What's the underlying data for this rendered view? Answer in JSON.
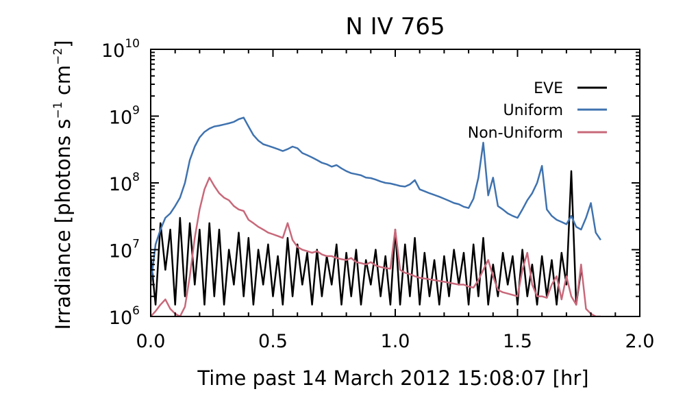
{
  "chart_data": {
    "type": "line",
    "title": "N IV 765",
    "xlabel": "Time past 14 March 2012 15:08:07 [hr]",
    "ylabel": {
      "base": "Irradiance [photons s",
      "exp1": "−1",
      "mid": " cm",
      "exp2": "−2",
      "end": "]"
    },
    "xlim": [
      0.0,
      2.0
    ],
    "ylim": [
      1000000,
      10000000000
    ],
    "yscale": "log",
    "xticks": [
      {
        "value": 0.0,
        "label": "0.0"
      },
      {
        "value": 0.5,
        "label": "0.5"
      },
      {
        "value": 1.0,
        "label": "1.0"
      },
      {
        "value": 1.5,
        "label": "1.5"
      },
      {
        "value": 2.0,
        "label": "2.0"
      }
    ],
    "yticks": [
      {
        "value": 1000000,
        "base": "10",
        "exp": "6"
      },
      {
        "value": 10000000,
        "base": "10",
        "exp": "7"
      },
      {
        "value": 100000000,
        "base": "10",
        "exp": "8"
      },
      {
        "value": 1000000000,
        "base": "10",
        "exp": "9"
      },
      {
        "value": 10000000000,
        "base": "10",
        "exp": "10"
      }
    ],
    "legend_position": "top-right",
    "x": [
      0.0,
      0.02,
      0.04,
      0.06,
      0.08,
      0.1,
      0.12,
      0.14,
      0.16,
      0.18,
      0.2,
      0.22,
      0.24,
      0.26,
      0.28,
      0.3,
      0.32,
      0.34,
      0.36,
      0.38,
      0.4,
      0.42,
      0.44,
      0.46,
      0.48,
      0.5,
      0.52,
      0.54,
      0.56,
      0.58,
      0.6,
      0.62,
      0.64,
      0.66,
      0.68,
      0.7,
      0.72,
      0.74,
      0.76,
      0.78,
      0.8,
      0.82,
      0.84,
      0.86,
      0.88,
      0.9,
      0.92,
      0.94,
      0.96,
      0.98,
      1.0,
      1.02,
      1.04,
      1.06,
      1.08,
      1.1,
      1.12,
      1.14,
      1.16,
      1.18,
      1.2,
      1.22,
      1.24,
      1.26,
      1.28,
      1.3,
      1.32,
      1.34,
      1.36,
      1.38,
      1.4,
      1.42,
      1.44,
      1.46,
      1.48,
      1.5,
      1.52,
      1.54,
      1.56,
      1.58,
      1.6,
      1.62,
      1.64,
      1.66,
      1.68,
      1.7,
      1.72,
      1.74,
      1.76,
      1.78,
      1.8,
      1.82,
      1.84
    ],
    "series": [
      {
        "name": "EVE",
        "color": "#000000",
        "values": [
          8000000,
          1500000,
          25000000,
          5000000,
          20000000,
          1500000,
          30000000,
          2000000,
          25000000,
          3000000,
          20000000,
          1500000,
          25000000,
          2000000,
          20000000,
          1500000,
          10000000,
          3000000,
          18000000,
          2000000,
          15000000,
          1500000,
          10000000,
          3000000,
          12000000,
          2000000,
          8000000,
          1500000,
          15000000,
          2000000,
          12000000,
          3000000,
          9000000,
          1500000,
          10000000,
          2000000,
          8000000,
          3000000,
          12000000,
          1500000,
          9000000,
          2000000,
          10000000,
          1500000,
          7000000,
          3000000,
          10000000,
          2000000,
          8000000,
          1500000,
          20000000,
          1500000,
          12000000,
          2000000,
          15000000,
          1500000,
          9000000,
          2000000,
          7000000,
          1500000,
          8000000,
          2000000,
          10000000,
          3000000,
          9000000,
          1500000,
          12000000,
          2000000,
          15000000,
          1500000,
          6000000,
          2000000,
          9000000,
          3000000,
          8000000,
          1500000,
          10000000,
          2000000,
          6000000,
          1500000,
          8000000,
          2000000,
          7000000,
          1500000,
          9000000,
          3000000,
          150000000,
          1500000,
          5000000,
          null,
          null,
          null,
          null
        ]
      },
      {
        "name": "Uniform",
        "color": "#3f72af",
        "values": [
          3000000,
          12000000,
          20000000,
          30000000,
          35000000,
          45000000,
          60000000,
          100000000,
          220000000,
          350000000,
          480000000,
          580000000,
          650000000,
          700000000,
          720000000,
          750000000,
          780000000,
          820000000,
          900000000,
          950000000,
          700000000,
          520000000,
          430000000,
          380000000,
          360000000,
          340000000,
          320000000,
          300000000,
          320000000,
          350000000,
          330000000,
          280000000,
          260000000,
          240000000,
          220000000,
          200000000,
          190000000,
          175000000,
          185000000,
          165000000,
          150000000,
          140000000,
          135000000,
          130000000,
          120000000,
          118000000,
          112000000,
          105000000,
          100000000,
          98000000,
          94000000,
          90000000,
          88000000,
          95000000,
          110000000,
          80000000,
          75000000,
          70000000,
          66000000,
          62000000,
          58000000,
          54000000,
          50000000,
          48000000,
          44000000,
          42000000,
          58000000,
          120000000,
          400000000,
          65000000,
          120000000,
          45000000,
          40000000,
          35000000,
          32000000,
          30000000,
          40000000,
          55000000,
          70000000,
          100000000,
          180000000,
          40000000,
          32000000,
          28000000,
          26000000,
          24000000,
          32000000,
          22000000,
          20000000,
          30000000,
          50000000,
          18000000,
          14000000
        ]
      },
      {
        "name": "Non-Uniform",
        "color": "#c8687a",
        "values": [
          1000000,
          1200000,
          1500000,
          1800000,
          1300000,
          1100000,
          1000000,
          1400000,
          4000000,
          15000000,
          40000000,
          80000000,
          120000000,
          90000000,
          70000000,
          60000000,
          55000000,
          45000000,
          40000000,
          38000000,
          28000000,
          25000000,
          22000000,
          20000000,
          18000000,
          17000000,
          16000000,
          15000000,
          25000000,
          14000000,
          11000000,
          10000000,
          9500000,
          9000000,
          9500000,
          8500000,
          8000000,
          8000000,
          7500000,
          7200000,
          7000000,
          7500000,
          6500000,
          6300000,
          6000000,
          6500000,
          5800000,
          5500000,
          5300000,
          5200000,
          20000000,
          5000000,
          4500000,
          4300000,
          4000000,
          3800000,
          3700000,
          3600000,
          3500000,
          3400000,
          3300000,
          3200000,
          3100000,
          3000000,
          3000000,
          2800000,
          2700000,
          3500000,
          5000000,
          7000000,
          4000000,
          2500000,
          2300000,
          2200000,
          2100000,
          2000000,
          5000000,
          9000000,
          3000000,
          2000000,
          2000000,
          1900000,
          3000000,
          4000000,
          1800000,
          4000000,
          2000000,
          1500000,
          6000000,
          1300000,
          1100000,
          1000000,
          1000000
        ]
      }
    ]
  }
}
